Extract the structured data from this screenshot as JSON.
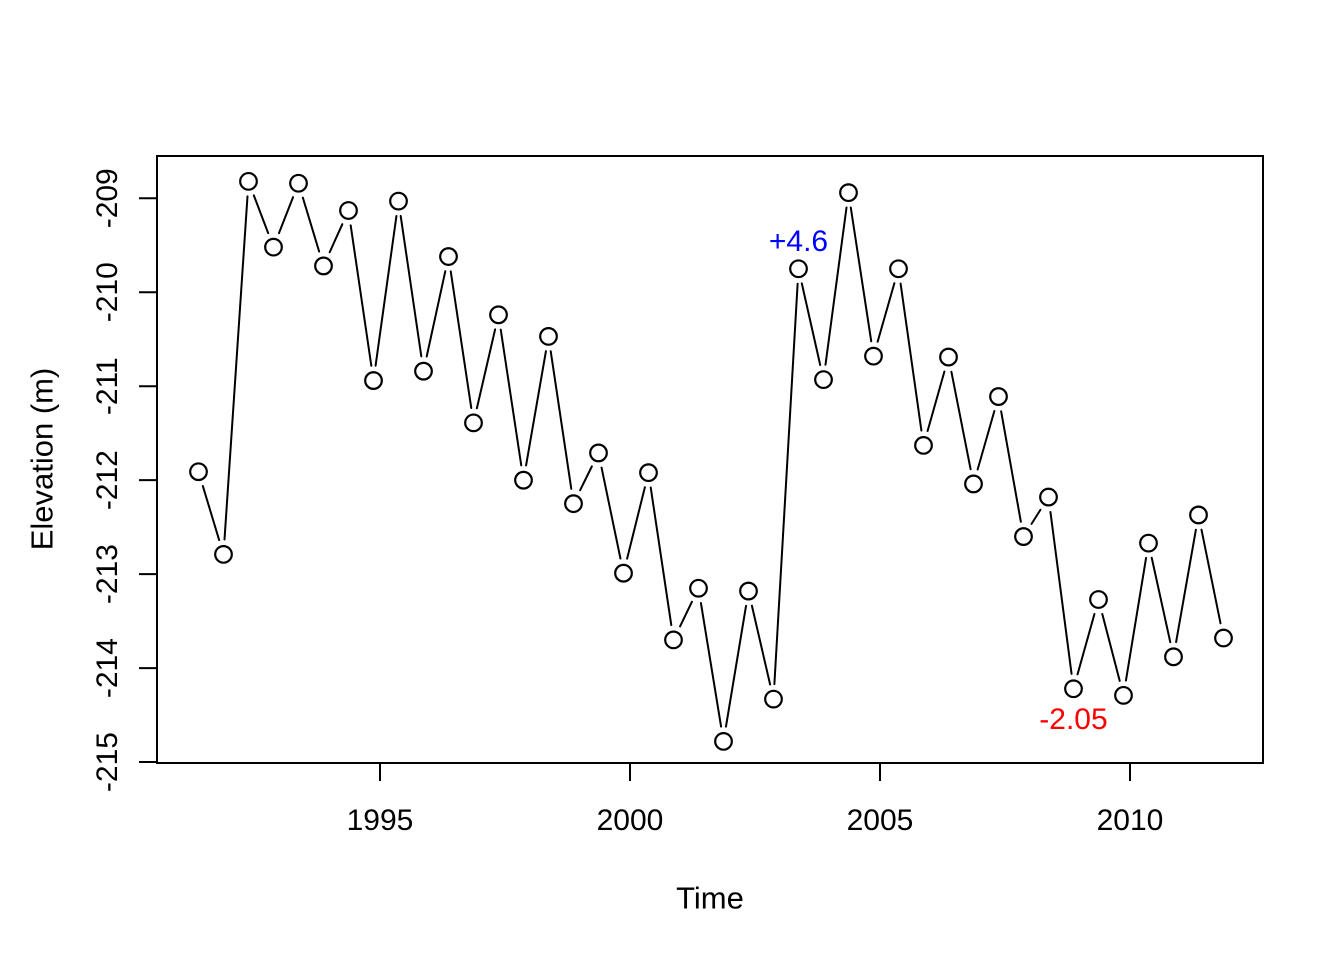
{
  "figure": {
    "background": "#ffffff",
    "foreground": "#000000"
  },
  "chart_data": {
    "type": "line",
    "title": "",
    "xlabel": "Time",
    "ylabel": "Elevation (m)",
    "marker": "open-circle",
    "marker_color": "#000000",
    "line_color": "#000000",
    "grid": false,
    "legend": null,
    "xlim": [
      1990.54,
      2012.66
    ],
    "ylim": [
      -215.01,
      -208.55
    ],
    "x_ticks": [
      1995,
      2000,
      2005,
      2010
    ],
    "y_ticks": [
      -215,
      -214,
      -213,
      -212,
      -211,
      -210,
      -209
    ],
    "x": [
      1991.37,
      1991.87,
      1992.37,
      1992.87,
      1993.37,
      1993.87,
      1994.37,
      1994.87,
      1995.37,
      1995.87,
      1996.37,
      1996.87,
      1997.37,
      1997.87,
      1998.37,
      1998.87,
      1999.37,
      1999.87,
      2000.37,
      2000.87,
      2001.37,
      2001.87,
      2002.37,
      2002.87,
      2003.37,
      2003.87,
      2004.37,
      2004.87,
      2005.37,
      2005.87,
      2006.37,
      2006.87,
      2007.37,
      2007.87,
      2008.37,
      2008.87,
      2009.37,
      2009.87,
      2010.37,
      2010.87,
      2011.37,
      2011.87
    ],
    "y": [
      -211.91,
      -212.79,
      -208.82,
      -209.52,
      -208.84,
      -209.72,
      -209.13,
      -210.94,
      -209.03,
      -210.84,
      -209.62,
      -211.39,
      -210.24,
      -212.0,
      -210.47,
      -212.25,
      -211.71,
      -212.99,
      -211.92,
      -213.7,
      -213.15,
      -214.78,
      -213.18,
      -214.33,
      -209.75,
      -210.93,
      -208.94,
      -210.68,
      -209.75,
      -211.63,
      -210.69,
      -212.04,
      -211.11,
      -212.6,
      -212.18,
      -214.22,
      -213.27,
      -214.29,
      -212.67,
      -213.88,
      -212.37,
      -213.68
    ],
    "annotations": [
      {
        "text": "+4.6",
        "color": "#0000FF",
        "x": 2003.37,
        "y": -209.75,
        "position": "above"
      },
      {
        "text": "-2.05",
        "color": "#FF0000",
        "x": 2008.87,
        "y": -214.22,
        "position": "below"
      }
    ]
  }
}
